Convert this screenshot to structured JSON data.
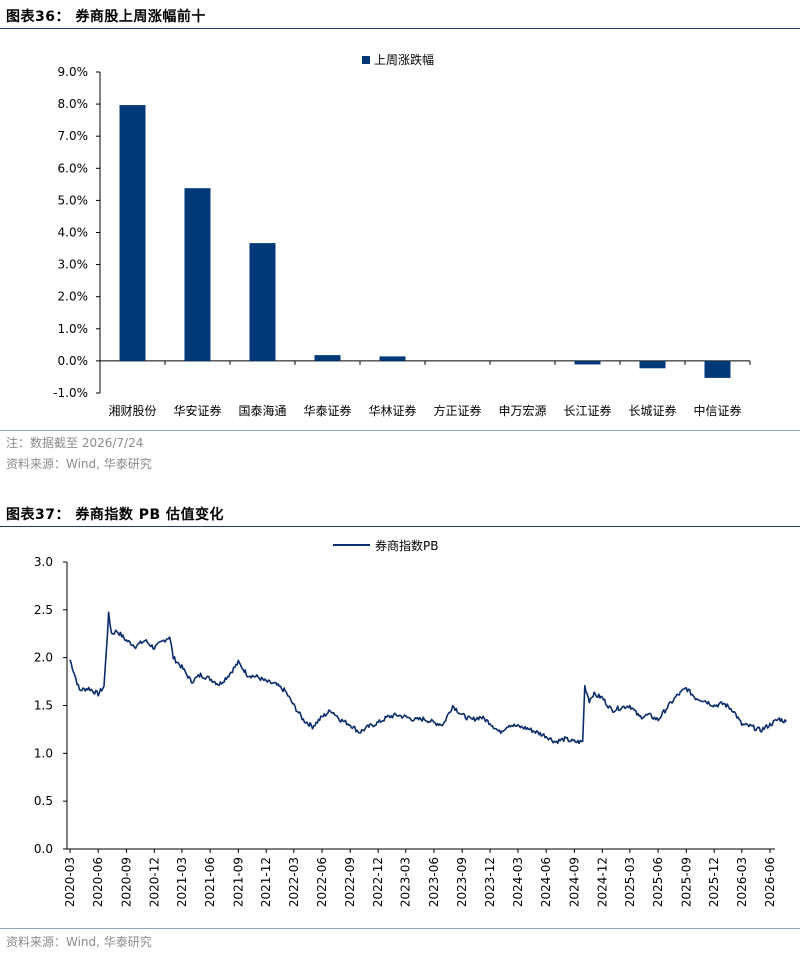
{
  "figure36": {
    "title": "图表36：  券商股上周涨幅前十",
    "note": "注：数据截至 2026/7/24",
    "source": "资料来源：Wind, 华泰研究",
    "chart_data": {
      "type": "bar",
      "categories": [
        "湘财股份",
        "华安证券",
        "国泰海通",
        "华泰证券",
        "华林证券",
        "方正证券",
        "申万宏源",
        "长江证券",
        "长城证券",
        "中信证券"
      ],
      "series": [
        {
          "name": "上周涨跌幅",
          "values": [
            7.97,
            5.38,
            3.67,
            0.18,
            0.14,
            0.0,
            0.0,
            -0.11,
            -0.23,
            -0.53
          ],
          "color": "#003878"
        }
      ],
      "yticks": [
        "9.0%",
        "8.0%",
        "7.0%",
        "6.0%",
        "5.0%",
        "4.0%",
        "3.0%",
        "2.0%",
        "1.0%",
        "0.0%",
        "-1.0%"
      ],
      "ylim": [
        -1.0,
        9.0
      ],
      "legend_position": "top",
      "grid": false
    }
  },
  "figure37": {
    "title": "图表37：  券商指数 PB 估值变化",
    "source": "资料来源：Wind, 华泰研究",
    "chart_data": {
      "type": "line",
      "series": [
        {
          "name": "券商指数PB",
          "color": "#0b2c6b"
        }
      ],
      "ylim": [
        0.0,
        3.0
      ],
      "yticks": [
        "3.0",
        "2.5",
        "2.0",
        "1.5",
        "1.0",
        "0.5",
        "0.0"
      ],
      "xticks": [
        "2020-03",
        "2020-06",
        "2020-09",
        "2020-12",
        "2021-03",
        "2021-06",
        "2021-09",
        "2021-12",
        "2022-03",
        "2022-06",
        "2022-09",
        "2022-12",
        "2023-03",
        "2023-06",
        "2023-09",
        "2023-12",
        "2024-03",
        "2024-06",
        "2024-09",
        "2024-12",
        "2025-03",
        "2025-06",
        "2025-09",
        "2025-12",
        "2026-03",
        "2026-06"
      ],
      "points": [
        [
          "2020-03",
          1.98
        ],
        [
          "2020-04",
          1.66
        ],
        [
          "2020-05",
          1.68
        ],
        [
          "2020-06",
          1.62
        ],
        [
          "2020-06-20",
          1.7
        ],
        [
          "2020-07-05",
          2.45
        ],
        [
          "2020-07-15",
          2.25
        ],
        [
          "2020-08",
          2.28
        ],
        [
          "2020-09",
          2.18
        ],
        [
          "2020-10",
          2.12
        ],
        [
          "2020-11",
          2.18
        ],
        [
          "2020-12",
          2.1
        ],
        [
          "2021-01",
          2.18
        ],
        [
          "2021-01-20",
          2.22
        ],
        [
          "2021-02",
          2.0
        ],
        [
          "2021-03",
          1.9
        ],
        [
          "2021-04",
          1.75
        ],
        [
          "2021-05",
          1.82
        ],
        [
          "2021-06",
          1.78
        ],
        [
          "2021-07",
          1.72
        ],
        [
          "2021-08",
          1.82
        ],
        [
          "2021-09",
          1.95
        ],
        [
          "2021-10",
          1.82
        ],
        [
          "2021-11",
          1.8
        ],
        [
          "2021-12",
          1.75
        ],
        [
          "2022-01",
          1.72
        ],
        [
          "2022-02",
          1.65
        ],
        [
          "2022-03",
          1.5
        ],
        [
          "2022-04",
          1.35
        ],
        [
          "2022-05",
          1.28
        ],
        [
          "2022-06",
          1.38
        ],
        [
          "2022-07",
          1.45
        ],
        [
          "2022-08",
          1.35
        ],
        [
          "2022-09",
          1.3
        ],
        [
          "2022-10",
          1.22
        ],
        [
          "2022-11",
          1.28
        ],
        [
          "2022-12",
          1.32
        ],
        [
          "2023-01",
          1.38
        ],
        [
          "2023-02",
          1.4
        ],
        [
          "2023-03",
          1.38
        ],
        [
          "2023-04",
          1.35
        ],
        [
          "2023-05",
          1.36
        ],
        [
          "2023-06",
          1.32
        ],
        [
          "2023-07",
          1.3
        ],
        [
          "2023-08",
          1.5
        ],
        [
          "2023-09",
          1.4
        ],
        [
          "2023-10",
          1.35
        ],
        [
          "2023-11",
          1.38
        ],
        [
          "2023-12",
          1.32
        ],
        [
          "2024-01",
          1.22
        ],
        [
          "2024-02",
          1.3
        ],
        [
          "2024-03",
          1.28
        ],
        [
          "2024-04",
          1.26
        ],
        [
          "2024-05",
          1.22
        ],
        [
          "2024-06",
          1.18
        ],
        [
          "2024-07",
          1.12
        ],
        [
          "2024-08",
          1.15
        ],
        [
          "2024-09",
          1.12
        ],
        [
          "2024-09-28",
          1.12
        ],
        [
          "2024-10-05",
          1.7
        ],
        [
          "2024-10-20",
          1.55
        ],
        [
          "2024-11",
          1.62
        ],
        [
          "2024-12",
          1.58
        ],
        [
          "2025-01",
          1.45
        ],
        [
          "2025-02",
          1.48
        ],
        [
          "2025-03",
          1.5
        ],
        [
          "2025-04",
          1.38
        ],
        [
          "2025-05",
          1.4
        ],
        [
          "2025-06",
          1.35
        ],
        [
          "2025-07",
          1.48
        ],
        [
          "2025-08",
          1.6
        ],
        [
          "2025-09",
          1.68
        ],
        [
          "2025-10",
          1.58
        ],
        [
          "2025-11",
          1.55
        ],
        [
          "2025-12",
          1.5
        ],
        [
          "2026-01",
          1.52
        ],
        [
          "2026-02",
          1.45
        ],
        [
          "2026-03",
          1.3
        ],
        [
          "2026-04",
          1.28
        ],
        [
          "2026-05",
          1.24
        ],
        [
          "2026-06",
          1.3
        ],
        [
          "2026-07",
          1.36
        ],
        [
          "2026-07-24",
          1.33
        ]
      ],
      "legend_position": "top",
      "grid": false
    }
  }
}
